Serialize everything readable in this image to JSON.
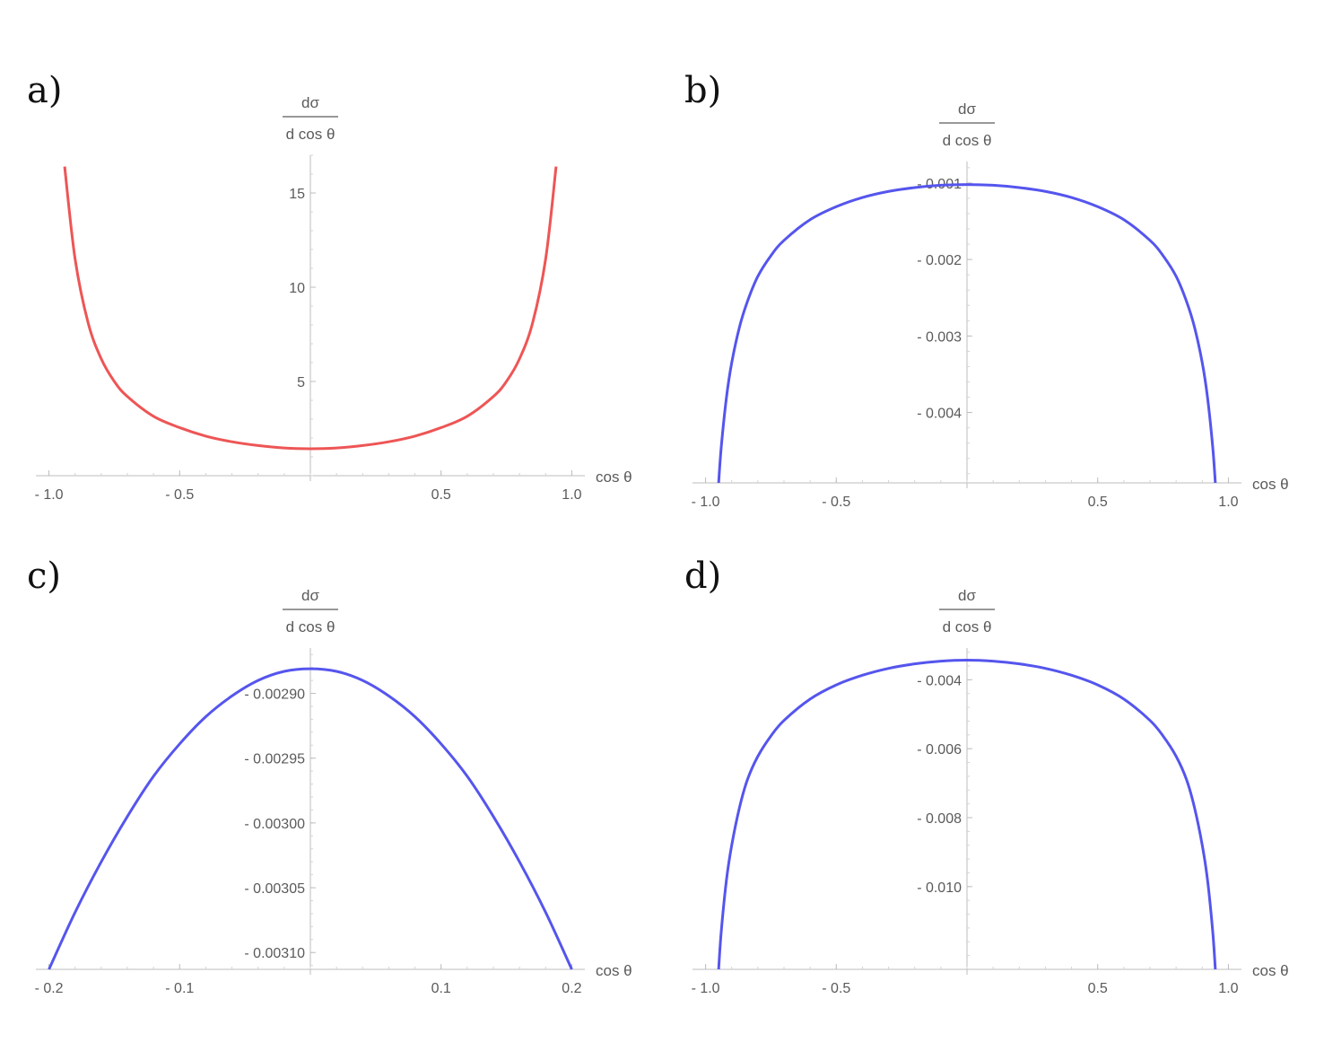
{
  "chart_data": [
    {
      "panel_label": "a)",
      "type": "line",
      "title": "",
      "xlabel": "cos θ",
      "ylabel": {
        "numerator": "dσ",
        "denominator": "d cos θ"
      },
      "xlim": [
        -1.05,
        1.05
      ],
      "ylim": [
        0,
        17
      ],
      "x_ticks": [
        {
          "value": -1.0,
          "label": "- 1.0"
        },
        {
          "value": -0.5,
          "label": "- 0.5"
        },
        {
          "value": 0.5,
          "label": "0.5"
        },
        {
          "value": 1.0,
          "label": "1.0"
        }
      ],
      "y_ticks": [
        {
          "value": 5,
          "label": "5"
        },
        {
          "value": 10,
          "label": "10"
        },
        {
          "value": 15,
          "label": "15"
        }
      ],
      "series": [
        {
          "name": "a",
          "color": "#ee5555",
          "x": [
            -0.94,
            -0.9,
            -0.85,
            -0.8,
            -0.75,
            -0.7,
            -0.6,
            -0.5,
            -0.4,
            -0.3,
            -0.2,
            -0.1,
            0.0,
            0.1,
            0.2,
            0.3,
            0.4,
            0.5,
            0.6,
            0.7,
            0.75,
            0.8,
            0.85,
            0.9,
            0.94
          ],
          "y": [
            16.4,
            11.5,
            8.1,
            6.2,
            5.0,
            4.2,
            3.15,
            2.55,
            2.1,
            1.8,
            1.6,
            1.47,
            1.43,
            1.47,
            1.6,
            1.8,
            2.1,
            2.55,
            3.15,
            4.2,
            5.0,
            6.2,
            8.1,
            11.5,
            16.4
          ]
        }
      ]
    },
    {
      "panel_label": "b)",
      "type": "line",
      "title": "",
      "xlabel": "cos θ",
      "ylabel": {
        "numerator": "dσ",
        "denominator": "d cos θ"
      },
      "xlim": [
        -1.05,
        1.05
      ],
      "ylim": [
        -0.00492,
        -0.00072
      ],
      "x_ticks": [
        {
          "value": -1.0,
          "label": "- 1.0"
        },
        {
          "value": -0.5,
          "label": "- 0.5"
        },
        {
          "value": 0.5,
          "label": "0.5"
        },
        {
          "value": 1.0,
          "label": "1.0"
        }
      ],
      "y_ticks": [
        {
          "value": -0.001,
          "label": "- 0.001"
        },
        {
          "value": -0.002,
          "label": "- 0.002"
        },
        {
          "value": -0.003,
          "label": "- 0.003"
        },
        {
          "value": -0.004,
          "label": "- 0.004"
        }
      ],
      "series": [
        {
          "name": "b",
          "color": "#5555ee",
          "x": [
            -0.95,
            -0.94,
            -0.92,
            -0.9,
            -0.87,
            -0.84,
            -0.8,
            -0.75,
            -0.7,
            -0.6,
            -0.5,
            -0.4,
            -0.3,
            -0.2,
            -0.1,
            0.0,
            0.1,
            0.2,
            0.3,
            0.4,
            0.5,
            0.6,
            0.7,
            0.75,
            0.8,
            0.84,
            0.87,
            0.9,
            0.92,
            0.94,
            0.95
          ],
          "y": [
            -0.00492,
            -0.00445,
            -0.0038,
            -0.00335,
            -0.00288,
            -0.00255,
            -0.00222,
            -0.00195,
            -0.00175,
            -0.00148,
            -0.00131,
            -0.00119,
            -0.00111,
            -0.00106,
            -0.00103,
            -0.00102,
            -0.00103,
            -0.00106,
            -0.00111,
            -0.00119,
            -0.00131,
            -0.00148,
            -0.00175,
            -0.00195,
            -0.00222,
            -0.00255,
            -0.00288,
            -0.00335,
            -0.0038,
            -0.00445,
            -0.00492
          ]
        }
      ]
    },
    {
      "panel_label": "c)",
      "type": "line",
      "title": "",
      "xlabel": "cos θ",
      "ylabel": {
        "numerator": "dσ",
        "denominator": "d cos θ"
      },
      "xlim": [
        -0.21,
        0.21
      ],
      "ylim": [
        -0.003113,
        -0.002865
      ],
      "x_ticks": [
        {
          "value": -0.2,
          "label": "- 0.2"
        },
        {
          "value": -0.1,
          "label": "- 0.1"
        },
        {
          "value": 0.1,
          "label": "0.1"
        },
        {
          "value": 0.2,
          "label": "0.2"
        }
      ],
      "y_ticks": [
        {
          "value": -0.0029,
          "label": "- 0.00290"
        },
        {
          "value": -0.00295,
          "label": "- 0.00295"
        },
        {
          "value": -0.003,
          "label": "- 0.00300"
        },
        {
          "value": -0.00305,
          "label": "- 0.00305"
        },
        {
          "value": -0.0031,
          "label": "- 0.00310"
        }
      ],
      "series": [
        {
          "name": "c",
          "color": "#5555ee",
          "x": [
            -0.2,
            -0.18,
            -0.16,
            -0.14,
            -0.12,
            -0.1,
            -0.08,
            -0.06,
            -0.04,
            -0.02,
            0.0,
            0.02,
            0.04,
            0.06,
            0.08,
            0.1,
            0.12,
            0.14,
            0.16,
            0.18,
            0.2
          ],
          "y": [
            -0.003113,
            -0.003069,
            -0.00303,
            -0.002995,
            -0.002964,
            -0.002939,
            -0.002918,
            -0.002902,
            -0.00289,
            -0.002883,
            -0.002881,
            -0.002883,
            -0.00289,
            -0.002902,
            -0.002918,
            -0.002939,
            -0.002964,
            -0.002995,
            -0.00303,
            -0.003069,
            -0.003113
          ]
        }
      ]
    },
    {
      "panel_label": "d)",
      "type": "line",
      "title": "",
      "xlabel": "cos θ",
      "ylabel": {
        "numerator": "dσ",
        "denominator": "d cos θ"
      },
      "xlim": [
        -1.05,
        1.05
      ],
      "ylim": [
        -0.0124,
        -0.00308
      ],
      "x_ticks": [
        {
          "value": -1.0,
          "label": "- 1.0"
        },
        {
          "value": -0.5,
          "label": "- 0.5"
        },
        {
          "value": 0.5,
          "label": "0.5"
        },
        {
          "value": 1.0,
          "label": "1.0"
        }
      ],
      "y_ticks": [
        {
          "value": -0.004,
          "label": "- 0.004"
        },
        {
          "value": -0.006,
          "label": "- 0.006"
        },
        {
          "value": -0.008,
          "label": "- 0.008"
        },
        {
          "value": -0.01,
          "label": "- 0.010"
        }
      ],
      "series": [
        {
          "name": "d",
          "color": "#5555ee",
          "x": [
            -0.95,
            -0.94,
            -0.92,
            -0.9,
            -0.87,
            -0.84,
            -0.8,
            -0.75,
            -0.7,
            -0.6,
            -0.5,
            -0.4,
            -0.3,
            -0.2,
            -0.1,
            0.0,
            0.1,
            0.2,
            0.3,
            0.4,
            0.5,
            0.6,
            0.7,
            0.75,
            0.8,
            0.84,
            0.87,
            0.9,
            0.92,
            0.94,
            0.95
          ],
          "y": [
            -0.0124,
            -0.0113,
            -0.0098,
            -0.0088,
            -0.0077,
            -0.0069,
            -0.00622,
            -0.00563,
            -0.00518,
            -0.00456,
            -0.00415,
            -0.00387,
            -0.00367,
            -0.00354,
            -0.00346,
            -0.00343,
            -0.00346,
            -0.00354,
            -0.00367,
            -0.00387,
            -0.00415,
            -0.00456,
            -0.00518,
            -0.00563,
            -0.00622,
            -0.0069,
            -0.0077,
            -0.0088,
            -0.0098,
            -0.0113,
            -0.0124
          ]
        }
      ]
    }
  ]
}
